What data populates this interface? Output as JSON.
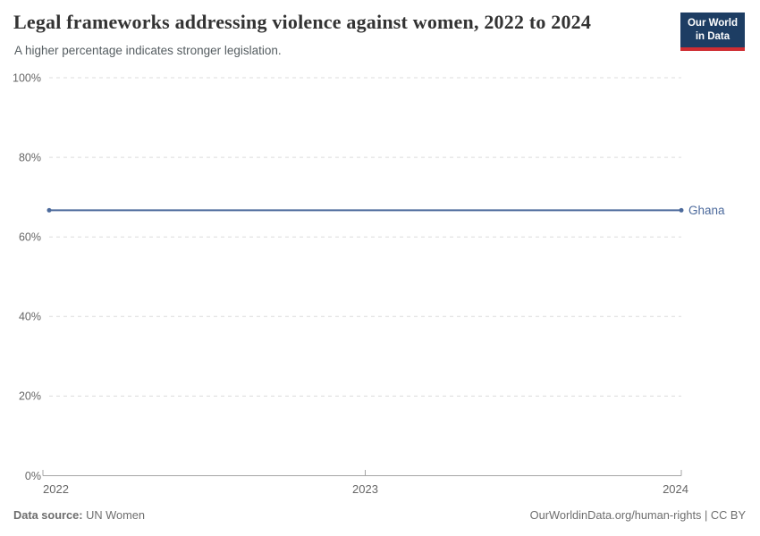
{
  "header": {
    "title": "Legal frameworks addressing violence against women, 2022 to 2024",
    "subtitle": "A higher percentage indicates stronger legislation.",
    "logo": {
      "line1": "Our World",
      "line2": "in Data"
    }
  },
  "chart_data": {
    "type": "line",
    "title": "Legal frameworks addressing violence against women, 2022 to 2024",
    "subtitle": "A higher percentage indicates stronger legislation.",
    "x": [
      2022,
      2023,
      2024
    ],
    "series": [
      {
        "name": "Ghana",
        "values": [
          66.7,
          66.7,
          66.7
        ],
        "color": "#4C6A9C"
      }
    ],
    "xlabel": "",
    "ylabel": "",
    "ylim": [
      0,
      100
    ],
    "yticks": [
      {
        "value": 0,
        "label": "0%"
      },
      {
        "value": 20,
        "label": "20%"
      },
      {
        "value": 40,
        "label": "40%"
      },
      {
        "value": 60,
        "label": "60%"
      },
      {
        "value": 80,
        "label": "80%"
      },
      {
        "value": 100,
        "label": "100%"
      }
    ],
    "xticks": [
      {
        "value": 2022,
        "label": "2022"
      },
      {
        "value": 2023,
        "label": "2023"
      },
      {
        "value": 2024,
        "label": "2024"
      }
    ],
    "grid": true,
    "legend_position": "inline-end-label"
  },
  "footer": {
    "source_label": "Data source:",
    "source_value": "UN Women",
    "right_text": "OurWorldinData.org/human-rights | CC BY"
  },
  "colors": {
    "line": "#4C6A9C",
    "entity_label": "#4C6A9C",
    "gridline": "#dcdcdc",
    "axis": "#a5a5a5",
    "tick_label": "#666666",
    "title": "#333333",
    "subtitle": "#555d61",
    "footer_text": "#6e6e6e",
    "logo_bg": "#1d3d63",
    "logo_accent": "#cf2d32",
    "background": "#ffffff"
  }
}
